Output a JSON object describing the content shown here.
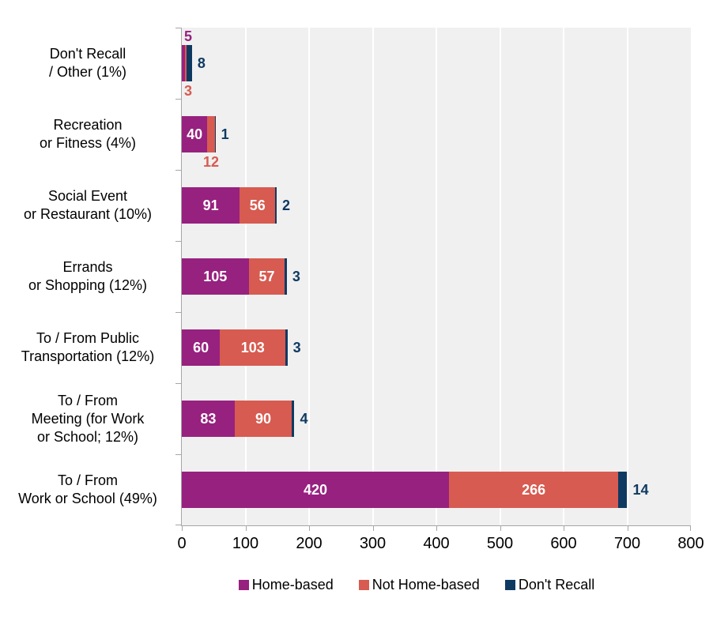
{
  "chart_data": {
    "type": "bar",
    "orientation": "horizontal",
    "stacked": true,
    "title": "",
    "xlabel": "",
    "ylabel": "",
    "x_axis": {
      "min": 0,
      "max": 800,
      "tick_step": 100,
      "tick_labels": [
        "0",
        "100",
        "200",
        "300",
        "400",
        "500",
        "600",
        "700",
        "800"
      ]
    },
    "grid": true,
    "categories": [
      "Don't Recall / Other (1%)",
      "Recreation or Fitness (4%)",
      "Social Event or Restaurant (10%)",
      "Errands or Shopping (12%)",
      "To / From Public Transportation (12%)",
      "To / From Meeting (for Work or School; 12%)",
      "To / From Work or School (49%)"
    ],
    "category_label_lines": [
      [
        "Don't Recall",
        "/ Other (1%)"
      ],
      [
        "Recreation",
        "or Fitness (4%)"
      ],
      [
        "Social Event",
        "or Restaurant (10%)"
      ],
      [
        "Errands",
        "or Shopping (12%)"
      ],
      [
        "To / From Public",
        "Transportation (12%)"
      ],
      [
        "To / From",
        "Meeting (for Work",
        "or School; 12%)"
      ],
      [
        "To / From",
        "Work or School (49%)"
      ]
    ],
    "series": [
      {
        "name": "Home-based",
        "color": "#97217F",
        "values": [
          5,
          40,
          91,
          105,
          60,
          83,
          420
        ]
      },
      {
        "name": "Not Home-based",
        "color": "#D75B50",
        "values": [
          3,
          12,
          56,
          57,
          103,
          90,
          266
        ]
      },
      {
        "name": "Don't Recall",
        "color": "#0E3A62",
        "values": [
          8,
          1,
          2,
          3,
          3,
          4,
          14
        ]
      }
    ],
    "legend": {
      "position": "bottom",
      "entries": [
        "Home-based",
        "Not Home-based",
        "Don't Recall"
      ]
    }
  },
  "colors": {
    "plot_background": "#F0F0F0",
    "gridline": "#FFFFFF",
    "axis": "#A6A6A6",
    "text": "#000000",
    "inside_value_label": "#FFFFFF"
  }
}
